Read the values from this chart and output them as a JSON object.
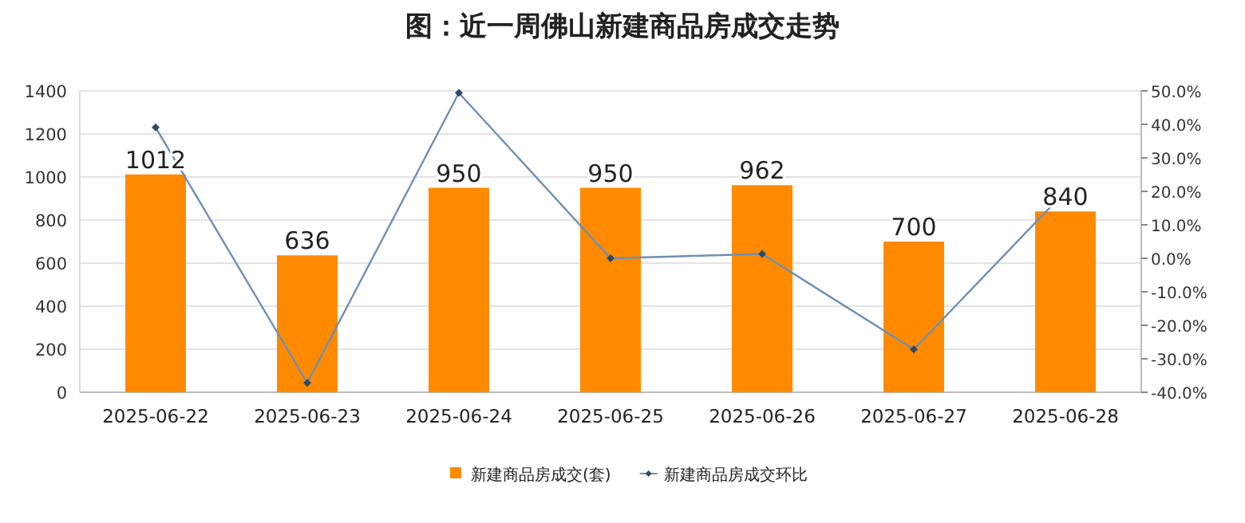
{
  "chart_data": {
    "type": "bar",
    "title": "图：近一周佛山新建商品房成交走势",
    "categories": [
      "2025-06-22",
      "2025-06-23",
      "2025-06-24",
      "2025-06-25",
      "2025-06-26",
      "2025-06-27",
      "2025-06-28"
    ],
    "series": [
      {
        "name": "新建商品房成交(套)",
        "color": "#ff8a00",
        "values": [
          1012,
          636,
          950,
          950,
          962,
          700,
          840
        ],
        "data_labels": true
      },
      {
        "name": "新建商品房成交环比",
        "type": "line",
        "axis": "y2",
        "color": "#6f8fb3",
        "marker": "diamond",
        "values": [
          39.1,
          -37.2,
          49.4,
          0.0,
          1.3,
          -27.2,
          20.0
        ]
      }
    ],
    "ylim": [
      0,
      1400
    ],
    "yticks": [
      0,
      200,
      400,
      600,
      800,
      1000,
      1200,
      1400
    ],
    "y2lim": [
      -40,
      50
    ],
    "y2ticks": [
      {
        "value": -40,
        "label": "-40.0%"
      },
      {
        "value": -30,
        "label": "-30.0%"
      },
      {
        "value": -20,
        "label": "-20.0%"
      },
      {
        "value": -10,
        "label": "-10.0%"
      },
      {
        "value": 0,
        "label": "0.0%"
      },
      {
        "value": 10,
        "label": "10.0%"
      },
      {
        "value": 20,
        "label": "20.0%"
      },
      {
        "value": 30,
        "label": "30.0%"
      },
      {
        "value": 40,
        "label": "40.0%"
      },
      {
        "value": 50,
        "label": "50.0%"
      }
    ],
    "grid": "y",
    "legend": "bottom"
  }
}
